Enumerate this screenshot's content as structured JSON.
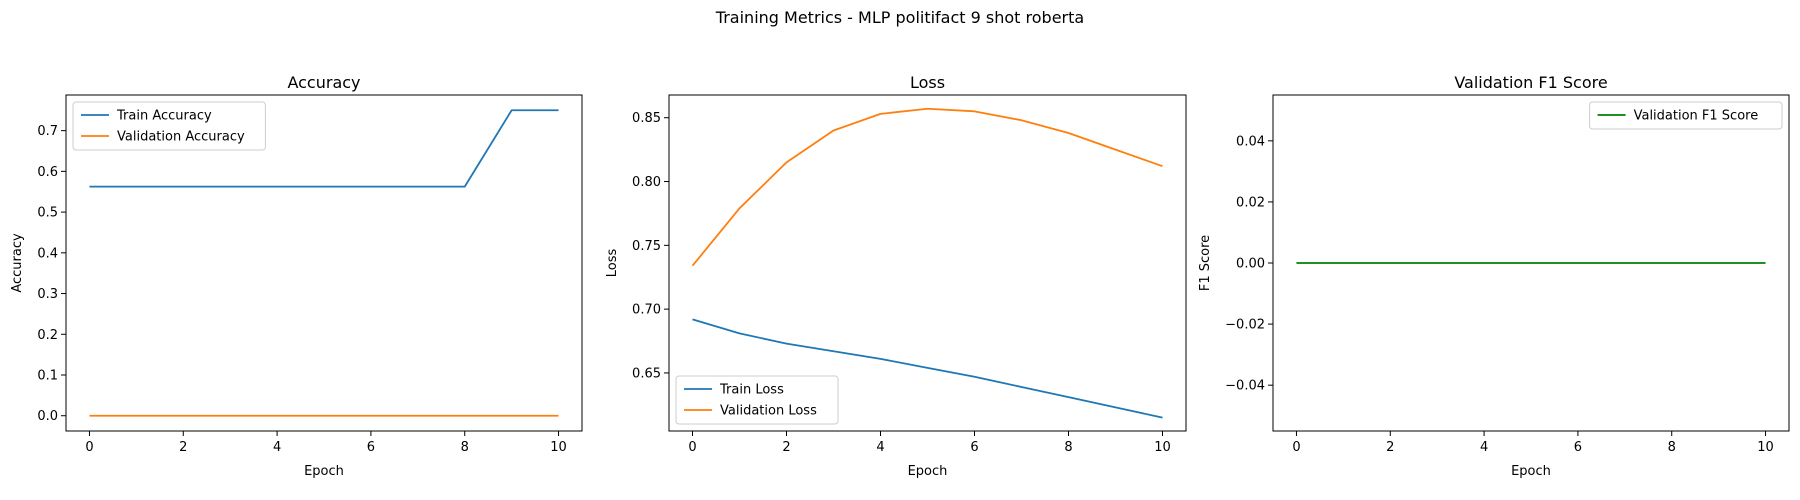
{
  "figure": {
    "suptitle": "Training Metrics - MLP politifact 9 shot roberta"
  },
  "chart_data": [
    {
      "type": "line",
      "title": "Accuracy",
      "xlabel": "Epoch",
      "ylabel": "Accuracy",
      "xlim": [
        -0.5,
        10.5
      ],
      "ylim": [
        -0.0375,
        0.7875
      ],
      "xticks": [
        0,
        2,
        4,
        6,
        8,
        10
      ],
      "xtick_labels": [
        "0",
        "2",
        "4",
        "6",
        "8",
        "10"
      ],
      "yticks": [
        0.0,
        0.1,
        0.2,
        0.3,
        0.4,
        0.5,
        0.6,
        0.7
      ],
      "ytick_labels": [
        "0.0",
        "0.1",
        "0.2",
        "0.3",
        "0.4",
        "0.5",
        "0.6",
        "0.7"
      ],
      "grid": false,
      "legend_position": "upper-left",
      "x": [
        0,
        1,
        2,
        3,
        4,
        5,
        6,
        7,
        8,
        9,
        10
      ],
      "series": [
        {
          "name": "Train Accuracy",
          "color": "#1f77b4",
          "values": [
            0.5625,
            0.5625,
            0.5625,
            0.5625,
            0.5625,
            0.5625,
            0.5625,
            0.5625,
            0.5625,
            0.75,
            0.75
          ]
        },
        {
          "name": "Validation Accuracy",
          "color": "#ff7f0e",
          "values": [
            0.0,
            0.0,
            0.0,
            0.0,
            0.0,
            0.0,
            0.0,
            0.0,
            0.0,
            0.0,
            0.0
          ]
        }
      ]
    },
    {
      "type": "line",
      "title": "Loss",
      "xlabel": "Epoch",
      "ylabel": "Loss",
      "xlim": [
        -0.5,
        10.5
      ],
      "ylim": [
        0.6045,
        0.8678
      ],
      "xticks": [
        0,
        2,
        4,
        6,
        8,
        10
      ],
      "xtick_labels": [
        "0",
        "2",
        "4",
        "6",
        "8",
        "10"
      ],
      "yticks": [
        0.65,
        0.7,
        0.75,
        0.8,
        0.85
      ],
      "ytick_labels": [
        "0.65",
        "0.70",
        "0.75",
        "0.80",
        "0.85"
      ],
      "grid": false,
      "legend_position": "lower-left",
      "x": [
        0,
        1,
        2,
        3,
        4,
        5,
        6,
        7,
        8,
        9,
        10
      ],
      "series": [
        {
          "name": "Train Loss",
          "color": "#1f77b4",
          "values": [
            0.692,
            0.681,
            0.673,
            0.667,
            0.661,
            0.654,
            0.647,
            0.639,
            0.631,
            0.623,
            0.615
          ]
        },
        {
          "name": "Validation Loss",
          "color": "#ff7f0e",
          "values": [
            0.734,
            0.779,
            0.815,
            0.84,
            0.853,
            0.857,
            0.855,
            0.848,
            0.838,
            0.825,
            0.812
          ]
        }
      ]
    },
    {
      "type": "line",
      "title": "Validation F1 Score",
      "xlabel": "Epoch",
      "ylabel": "F1 Score",
      "xlim": [
        -0.5,
        10.5
      ],
      "ylim": [
        -0.055,
        0.055
      ],
      "xticks": [
        0,
        2,
        4,
        6,
        8,
        10
      ],
      "xtick_labels": [
        "0",
        "2",
        "4",
        "6",
        "8",
        "10"
      ],
      "yticks": [
        -0.04,
        -0.02,
        0.0,
        0.02,
        0.04
      ],
      "ytick_labels": [
        "−0.04",
        "−0.02",
        "0.00",
        "0.02",
        "0.04"
      ],
      "grid": false,
      "legend_position": "upper-right",
      "x": [
        0,
        1,
        2,
        3,
        4,
        5,
        6,
        7,
        8,
        9,
        10
      ],
      "series": [
        {
          "name": "Validation F1 Score",
          "color": "#008000",
          "values": [
            0,
            0,
            0,
            0,
            0,
            0,
            0,
            0,
            0,
            0,
            0
          ]
        }
      ]
    }
  ]
}
